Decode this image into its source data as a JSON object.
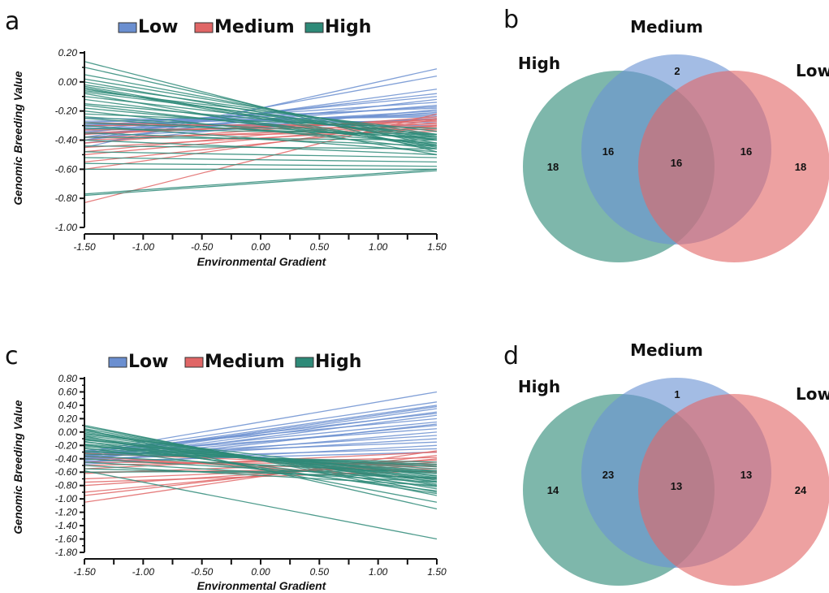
{
  "colors": {
    "low": "#6b8fd0",
    "medium": "#e06666",
    "high": "#2e8a78",
    "venn_high": "#2e8a78",
    "venn_medium": "#6b93d3",
    "venn_low": "#e26767"
  },
  "panels": {
    "a": {
      "letter": "a"
    },
    "b": {
      "letter": "b"
    },
    "c": {
      "letter": "c"
    },
    "d": {
      "letter": "d"
    }
  },
  "chart_data": [
    {
      "panel": "a",
      "type": "line",
      "xlabel": "Environmental Gradient",
      "ylabel": "Genomic Breeding Value",
      "xlim": [
        -1.5,
        1.5
      ],
      "ylim": [
        -1.0,
        0.2
      ],
      "x_ticks": [
        "-1.50",
        "-1.00",
        "-0.50",
        "0.00",
        "0.50",
        "1.00",
        "1.50"
      ],
      "y_ticks": [
        "0.20",
        "0.00",
        "-0.20",
        "-0.40",
        "-0.60",
        "-0.80",
        "-1.00"
      ],
      "legend": [
        "Low",
        "Medium",
        "High"
      ],
      "series": [
        {
          "name": "Low",
          "lines": [
            [
              -0.45,
              0.09
            ],
            [
              -0.4,
              0.04
            ],
            [
              -0.38,
              -0.05
            ],
            [
              -0.35,
              -0.08
            ],
            [
              -0.33,
              -0.1
            ],
            [
              -0.4,
              -0.12
            ],
            [
              -0.3,
              -0.14
            ],
            [
              -0.36,
              -0.16
            ],
            [
              -0.28,
              -0.18
            ],
            [
              -0.34,
              -0.2
            ],
            [
              -0.3,
              -0.22
            ],
            [
              -0.27,
              -0.24
            ],
            [
              -0.32,
              -0.26
            ],
            [
              -0.25,
              -0.28
            ],
            [
              -0.3,
              -0.3
            ],
            [
              -0.36,
              -0.21
            ],
            [
              -0.42,
              -0.19
            ],
            [
              -0.29,
              -0.23
            ],
            [
              -0.31,
              -0.17
            ],
            [
              -0.38,
              -0.25
            ]
          ]
        },
        {
          "name": "Medium",
          "lines": [
            [
              -0.83,
              -0.22
            ],
            [
              -0.6,
              -0.26
            ],
            [
              -0.55,
              -0.3
            ],
            [
              -0.5,
              -0.28
            ],
            [
              -0.45,
              -0.32
            ],
            [
              -0.42,
              -0.24
            ],
            [
              -0.38,
              -0.34
            ],
            [
              -0.35,
              -0.27
            ],
            [
              -0.33,
              -0.31
            ],
            [
              -0.3,
              -0.29
            ],
            [
              -0.28,
              -0.33
            ],
            [
              -0.4,
              -0.3
            ],
            [
              -0.36,
              -0.26
            ],
            [
              -0.48,
              -0.25
            ]
          ]
        },
        {
          "name": "High",
          "lines": [
            [
              0.14,
              -0.48
            ],
            [
              0.1,
              -0.44
            ],
            [
              0.05,
              -0.4
            ],
            [
              0.02,
              -0.38
            ],
            [
              0.0,
              -0.42
            ],
            [
              -0.02,
              -0.36
            ],
            [
              -0.04,
              -0.46
            ],
            [
              -0.05,
              -0.4
            ],
            [
              -0.06,
              -0.34
            ],
            [
              -0.08,
              -0.5
            ],
            [
              -0.1,
              -0.38
            ],
            [
              -0.12,
              -0.44
            ],
            [
              -0.15,
              -0.36
            ],
            [
              -0.18,
              -0.4
            ],
            [
              -0.2,
              -0.46
            ],
            [
              -0.22,
              -0.32
            ],
            [
              -0.25,
              -0.42
            ],
            [
              -0.28,
              -0.38
            ],
            [
              -0.3,
              -0.48
            ],
            [
              -0.32,
              -0.36
            ],
            [
              -0.35,
              -0.44
            ],
            [
              -0.38,
              -0.4
            ],
            [
              -0.4,
              -0.5
            ],
            [
              -0.44,
              -0.46
            ],
            [
              -0.48,
              -0.52
            ],
            [
              -0.52,
              -0.55
            ],
            [
              -0.56,
              -0.58
            ],
            [
              -0.6,
              -0.6
            ],
            [
              -0.77,
              -0.6
            ],
            [
              -0.78,
              -0.61
            ],
            [
              -0.03,
              -0.45
            ],
            [
              -0.07,
              -0.37
            ],
            [
              -0.16,
              -0.43
            ],
            [
              -0.24,
              -0.39
            ]
          ]
        }
      ]
    },
    {
      "panel": "b",
      "type": "venn",
      "sets": [
        "High",
        "Medium",
        "Low"
      ],
      "counts": {
        "high_only": 18,
        "medium_only": 2,
        "low_only": 18,
        "high_medium": 16,
        "medium_low": 16,
        "all": 16
      }
    },
    {
      "panel": "c",
      "type": "line",
      "xlabel": "Environmental Gradient",
      "ylabel": "Genomic Breeding Value",
      "xlim": [
        -1.5,
        1.5
      ],
      "ylim": [
        -1.8,
        0.8
      ],
      "x_ticks": [
        "-1.50",
        "-1.00",
        "-0.50",
        "0.00",
        "0.50",
        "1.00",
        "1.50"
      ],
      "y_ticks": [
        "0.80",
        "0.60",
        "0.40",
        "0.20",
        "0.00",
        "-0.20",
        "-0.40",
        "-0.60",
        "-0.80",
        "-1.00",
        "-1.20",
        "-1.40",
        "-1.60",
        "-1.80"
      ],
      "legend": [
        "Low",
        "Medium",
        "High"
      ],
      "series": [
        {
          "name": "Low",
          "lines": [
            [
              -0.3,
              0.6
            ],
            [
              -0.32,
              0.45
            ],
            [
              -0.35,
              0.4
            ],
            [
              -0.38,
              0.35
            ],
            [
              -0.4,
              0.3
            ],
            [
              -0.42,
              0.25
            ],
            [
              -0.28,
              0.2
            ],
            [
              -0.36,
              0.15
            ],
            [
              -0.4,
              0.1
            ],
            [
              -0.33,
              0.05
            ],
            [
              -0.45,
              0.0
            ],
            [
              -0.38,
              -0.05
            ],
            [
              -0.42,
              -0.1
            ],
            [
              -0.35,
              -0.15
            ],
            [
              -0.48,
              -0.2
            ],
            [
              -0.4,
              -0.25
            ],
            [
              -0.44,
              -0.3
            ],
            [
              -0.37,
              0.38
            ],
            [
              -0.31,
              0.28
            ],
            [
              -0.46,
              0.12
            ]
          ]
        },
        {
          "name": "Medium",
          "lines": [
            [
              -1.05,
              -0.28
            ],
            [
              -0.95,
              -0.35
            ],
            [
              -0.9,
              -0.4
            ],
            [
              -0.8,
              -0.45
            ],
            [
              -0.7,
              -0.5
            ],
            [
              -0.6,
              -0.55
            ],
            [
              -0.55,
              -0.3
            ],
            [
              -0.5,
              -0.38
            ],
            [
              -0.45,
              -0.48
            ],
            [
              -0.4,
              -0.6
            ],
            [
              -0.36,
              -0.7
            ],
            [
              -0.32,
              -0.52
            ],
            [
              -0.62,
              -0.42
            ],
            [
              -0.75,
              -0.58
            ]
          ]
        },
        {
          "name": "High",
          "lines": [
            [
              0.1,
              -0.95
            ],
            [
              0.08,
              -0.9
            ],
            [
              0.05,
              -0.85
            ],
            [
              0.02,
              -0.8
            ],
            [
              0.0,
              -0.78
            ],
            [
              -0.02,
              -0.75
            ],
            [
              -0.05,
              -0.72
            ],
            [
              -0.08,
              -0.7
            ],
            [
              -0.1,
              -0.68
            ],
            [
              -0.12,
              -0.65
            ],
            [
              -0.15,
              -0.62
            ],
            [
              -0.18,
              -0.6
            ],
            [
              -0.2,
              -0.58
            ],
            [
              -0.22,
              -0.55
            ],
            [
              -0.25,
              -0.52
            ],
            [
              -0.28,
              -0.5
            ],
            [
              -0.3,
              -0.48
            ],
            [
              -0.33,
              -0.45
            ],
            [
              -0.36,
              -0.62
            ],
            [
              -0.4,
              -0.7
            ],
            [
              -0.45,
              -0.75
            ],
            [
              -0.5,
              -0.8
            ],
            [
              -0.55,
              -0.68
            ],
            [
              -0.6,
              -0.58
            ],
            [
              -0.58,
              -1.6
            ],
            [
              0.04,
              -1.15
            ],
            [
              -0.06,
              -1.05
            ],
            [
              -0.14,
              -0.92
            ],
            [
              -0.24,
              -0.88
            ],
            [
              -0.03,
              -0.66
            ],
            [
              -0.11,
              -0.74
            ],
            [
              -0.19,
              -0.82
            ]
          ]
        }
      ]
    },
    {
      "panel": "d",
      "type": "venn",
      "sets": [
        "High",
        "Medium",
        "Low"
      ],
      "counts": {
        "high_only": 14,
        "medium_only": 1,
        "low_only": 24,
        "high_medium": 23,
        "medium_low": 13,
        "all": 13
      }
    }
  ]
}
